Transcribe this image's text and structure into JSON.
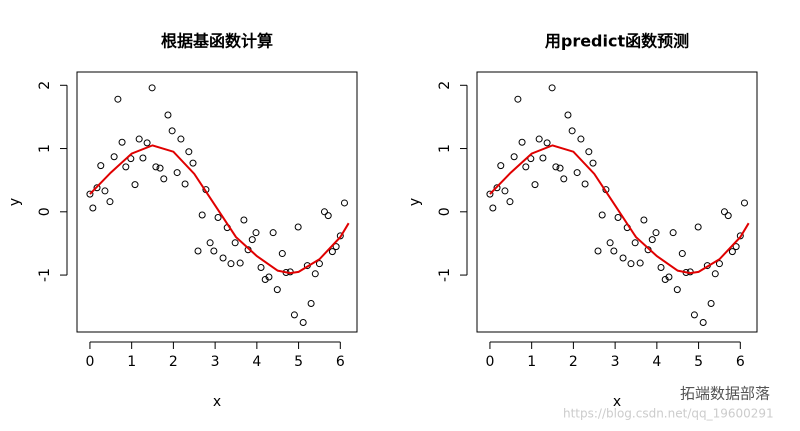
{
  "chart_data": [
    {
      "type": "scatter",
      "title": "根据基函数计算",
      "xlabel": "x",
      "ylabel": "y",
      "xlim": [
        -0.31,
        6.4
      ],
      "ylim": [
        -1.9,
        2.21
      ],
      "xticks": [
        0,
        1,
        2,
        3,
        4,
        5,
        6
      ],
      "yticks": [
        -1,
        0,
        1,
        2
      ],
      "points": {
        "color": "#000000",
        "x": [
          0,
          0.07,
          0.17,
          0.26,
          0.36,
          0.48,
          0.58,
          0.67,
          0.77,
          0.86,
          0.98,
          1.08,
          1.18,
          1.27,
          1.37,
          1.49,
          1.58,
          1.68,
          1.77,
          1.87,
          1.97,
          2.09,
          2.18,
          2.28,
          2.37,
          2.47,
          2.59,
          2.69,
          2.78,
          2.88,
          2.97,
          3.07,
          3.19,
          3.29,
          3.38,
          3.48,
          3.6,
          3.69,
          3.79,
          3.89,
          3.98,
          4.1,
          4.2,
          4.29,
          4.39,
          4.49,
          4.61,
          4.7,
          4.8,
          4.9,
          4.99,
          5.11,
          5.21,
          5.3,
          5.4,
          5.5,
          5.62,
          5.71,
          5.81,
          5.9,
          6.0,
          6.1
        ],
        "y": [
          0.28,
          0.06,
          0.38,
          0.73,
          0.33,
          0.16,
          0.87,
          1.78,
          1.1,
          0.71,
          0.84,
          0.43,
          1.15,
          0.85,
          1.09,
          1.96,
          0.71,
          0.69,
          0.52,
          1.53,
          1.28,
          0.62,
          1.15,
          0.44,
          0.95,
          0.77,
          -0.62,
          -0.05,
          0.35,
          -0.49,
          -0.62,
          -0.09,
          -0.73,
          -0.25,
          -0.82,
          -0.49,
          -0.81,
          -0.13,
          -0.6,
          -0.44,
          -0.33,
          -0.88,
          -1.07,
          -1.03,
          -0.33,
          -1.23,
          -0.66,
          -0.96,
          -0.95,
          -1.63,
          -0.24,
          -1.75,
          -0.85,
          -1.45,
          -0.98,
          -0.82,
          0.0,
          -0.06,
          -0.63,
          -0.55,
          -0.38,
          0.14
        ]
      },
      "fit": {
        "color": "#e00000",
        "x": [
          0,
          0.5,
          1,
          1.5,
          2,
          2.5,
          3,
          3.5,
          4,
          4.5,
          4.8,
          5,
          5.5,
          6,
          6.2
        ],
        "y": [
          0.28,
          0.62,
          0.92,
          1.05,
          0.95,
          0.6,
          0.1,
          -0.4,
          -0.7,
          -0.93,
          -0.97,
          -0.95,
          -0.75,
          -0.4,
          -0.18
        ]
      }
    },
    {
      "type": "scatter",
      "title": "用predict函数预测",
      "xlabel": "x",
      "ylabel": "y",
      "xlim": [
        -0.31,
        6.4
      ],
      "ylim": [
        -1.9,
        2.21
      ],
      "xticks": [
        0,
        1,
        2,
        3,
        4,
        5,
        6
      ],
      "yticks": [
        -1,
        0,
        1,
        2
      ],
      "points": {
        "color": "#000000",
        "x": [
          0,
          0.07,
          0.17,
          0.26,
          0.36,
          0.48,
          0.58,
          0.67,
          0.77,
          0.86,
          0.98,
          1.08,
          1.18,
          1.27,
          1.37,
          1.49,
          1.58,
          1.68,
          1.77,
          1.87,
          1.97,
          2.09,
          2.18,
          2.28,
          2.37,
          2.47,
          2.59,
          2.69,
          2.78,
          2.88,
          2.97,
          3.07,
          3.19,
          3.29,
          3.38,
          3.48,
          3.6,
          3.69,
          3.79,
          3.89,
          3.98,
          4.1,
          4.2,
          4.29,
          4.39,
          4.49,
          4.61,
          4.7,
          4.8,
          4.9,
          4.99,
          5.11,
          5.21,
          5.3,
          5.4,
          5.5,
          5.62,
          5.71,
          5.81,
          5.9,
          6.0,
          6.1
        ],
        "y": [
          0.28,
          0.06,
          0.38,
          0.73,
          0.33,
          0.16,
          0.87,
          1.78,
          1.1,
          0.71,
          0.84,
          0.43,
          1.15,
          0.85,
          1.09,
          1.96,
          0.71,
          0.69,
          0.52,
          1.53,
          1.28,
          0.62,
          1.15,
          0.44,
          0.95,
          0.77,
          -0.62,
          -0.05,
          0.35,
          -0.49,
          -0.62,
          -0.09,
          -0.73,
          -0.25,
          -0.82,
          -0.49,
          -0.81,
          -0.13,
          -0.6,
          -0.44,
          -0.33,
          -0.88,
          -1.07,
          -1.03,
          -0.33,
          -1.23,
          -0.66,
          -0.96,
          -0.95,
          -1.63,
          -0.24,
          -1.75,
          -0.85,
          -1.45,
          -0.98,
          -0.82,
          0.0,
          -0.06,
          -0.63,
          -0.55,
          -0.38,
          0.14
        ]
      },
      "fit": {
        "color": "#e00000",
        "x": [
          0,
          0.5,
          1,
          1.5,
          2,
          2.5,
          3,
          3.5,
          4,
          4.5,
          4.8,
          5,
          5.5,
          6,
          6.2
        ],
        "y": [
          0.28,
          0.62,
          0.92,
          1.05,
          0.95,
          0.6,
          0.1,
          -0.4,
          -0.7,
          -0.93,
          -0.97,
          -0.95,
          -0.75,
          -0.4,
          -0.18
        ]
      }
    }
  ],
  "watermark": {
    "brand": "拓端数据部落",
    "url": "https://blog.csdn.net/qq_19600291"
  }
}
